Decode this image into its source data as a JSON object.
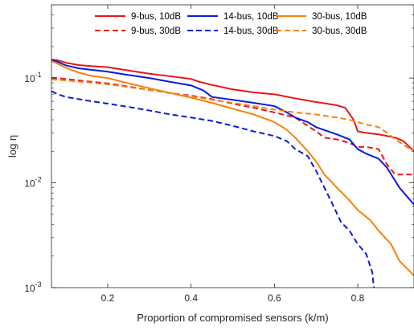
{
  "chart_data": {
    "type": "line",
    "xlabel": "Proportion of compromised sensors (k/m)",
    "ylabel": "log η",
    "xlim": [
      0.065,
      0.935
    ],
    "ylim": [
      0.001,
      0.5
    ],
    "yscale": "log",
    "x_ticks": [
      0.2,
      0.4,
      0.6,
      0.8
    ],
    "x_tick_labels": [
      "0.2",
      "0.4",
      "0.6",
      "0.8"
    ],
    "y_tick_labels": [
      {
        "value": 0.1,
        "label": "10",
        "exp": "-1"
      },
      {
        "value": 0.01,
        "label": "10",
        "exp": "-2"
      },
      {
        "value": 0.001,
        "label": "10",
        "exp": "-3"
      }
    ],
    "legend_position": "top-right",
    "series": [
      {
        "name": "9-bus, 10dB",
        "color": "#e8161b",
        "dash": "solid",
        "x": [
          0.065,
          0.08,
          0.1,
          0.13,
          0.16,
          0.2,
          0.25,
          0.3,
          0.35,
          0.4,
          0.42,
          0.45,
          0.5,
          0.55,
          0.6,
          0.65,
          0.7,
          0.75,
          0.77,
          0.79,
          0.8,
          0.82,
          0.85,
          0.87,
          0.89,
          0.91,
          0.935
        ],
        "values": [
          0.15,
          0.148,
          0.14,
          0.133,
          0.13,
          0.127,
          0.118,
          0.11,
          0.104,
          0.098,
          0.092,
          0.086,
          0.078,
          0.073,
          0.07,
          0.064,
          0.059,
          0.055,
          0.052,
          0.04,
          0.031,
          0.03,
          0.029,
          0.028,
          0.027,
          0.025,
          0.02
        ]
      },
      {
        "name": "9-bus, 30dB",
        "color": "#e8161b",
        "dash": "dashed",
        "x": [
          0.065,
          0.1,
          0.15,
          0.2,
          0.25,
          0.3,
          0.35,
          0.4,
          0.45,
          0.5,
          0.55,
          0.6,
          0.65,
          0.68,
          0.7,
          0.72,
          0.75,
          0.78,
          0.8,
          0.82,
          0.85,
          0.87,
          0.89,
          0.91,
          0.935
        ],
        "values": [
          0.101,
          0.098,
          0.093,
          0.089,
          0.083,
          0.077,
          0.072,
          0.068,
          0.063,
          0.057,
          0.052,
          0.047,
          0.042,
          0.035,
          0.031,
          0.027,
          0.026,
          0.024,
          0.022,
          0.022,
          0.021,
          0.015,
          0.012,
          0.012,
          0.012
        ]
      },
      {
        "name": "14-bus, 10dB",
        "color": "#0c1bd9",
        "dash": "solid",
        "x": [
          0.065,
          0.08,
          0.1,
          0.13,
          0.16,
          0.2,
          0.25,
          0.3,
          0.35,
          0.4,
          0.43,
          0.45,
          0.5,
          0.55,
          0.6,
          0.63,
          0.65,
          0.68,
          0.7,
          0.75,
          0.78,
          0.8,
          0.82,
          0.85,
          0.87,
          0.9,
          0.935
        ],
        "values": [
          0.15,
          0.143,
          0.132,
          0.124,
          0.12,
          0.115,
          0.107,
          0.1,
          0.092,
          0.085,
          0.076,
          0.066,
          0.062,
          0.058,
          0.054,
          0.047,
          0.042,
          0.038,
          0.034,
          0.029,
          0.026,
          0.021,
          0.019,
          0.017,
          0.014,
          0.009,
          0.0062
        ]
      },
      {
        "name": "14-bus, 30dB",
        "color": "#0c1bd9",
        "dash": "dashed",
        "x": [
          0.065,
          0.08,
          0.1,
          0.15,
          0.2,
          0.25,
          0.3,
          0.35,
          0.4,
          0.45,
          0.5,
          0.55,
          0.6,
          0.63,
          0.65,
          0.68,
          0.7,
          0.72,
          0.74,
          0.76,
          0.78,
          0.8,
          0.82,
          0.835,
          0.838,
          0.84
        ],
        "values": [
          0.075,
          0.07,
          0.066,
          0.061,
          0.057,
          0.053,
          0.049,
          0.045,
          0.042,
          0.039,
          0.035,
          0.031,
          0.028,
          0.025,
          0.021,
          0.018,
          0.013,
          0.009,
          0.0062,
          0.0042,
          0.0035,
          0.0026,
          0.0021,
          0.0014,
          0.00105,
          0.0009
        ]
      },
      {
        "name": "30-bus, 10dB",
        "color": "#f6820b",
        "dash": "solid",
        "x": [
          0.065,
          0.08,
          0.1,
          0.13,
          0.16,
          0.2,
          0.25,
          0.3,
          0.35,
          0.4,
          0.45,
          0.5,
          0.55,
          0.6,
          0.63,
          0.65,
          0.68,
          0.7,
          0.72,
          0.75,
          0.78,
          0.8,
          0.83,
          0.85,
          0.88,
          0.9,
          0.92,
          0.935
        ],
        "values": [
          0.145,
          0.137,
          0.125,
          0.113,
          0.105,
          0.1,
          0.089,
          0.08,
          0.072,
          0.065,
          0.058,
          0.051,
          0.045,
          0.038,
          0.032,
          0.027,
          0.02,
          0.016,
          0.012,
          0.009,
          0.0068,
          0.0055,
          0.0044,
          0.0035,
          0.0026,
          0.0018,
          0.0015,
          0.0013
        ]
      },
      {
        "name": "30-bus, 30dB",
        "color": "#f6820b",
        "dash": "dashed",
        "x": [
          0.065,
          0.1,
          0.15,
          0.2,
          0.25,
          0.3,
          0.35,
          0.4,
          0.45,
          0.5,
          0.55,
          0.6,
          0.65,
          0.7,
          0.75,
          0.78,
          0.8,
          0.82,
          0.85,
          0.87,
          0.89,
          0.91,
          0.935
        ],
        "values": [
          0.097,
          0.095,
          0.091,
          0.087,
          0.082,
          0.077,
          0.072,
          0.067,
          0.062,
          0.058,
          0.054,
          0.05,
          0.047,
          0.045,
          0.042,
          0.04,
          0.038,
          0.036,
          0.034,
          0.03,
          0.026,
          0.023,
          0.02
        ]
      }
    ]
  }
}
